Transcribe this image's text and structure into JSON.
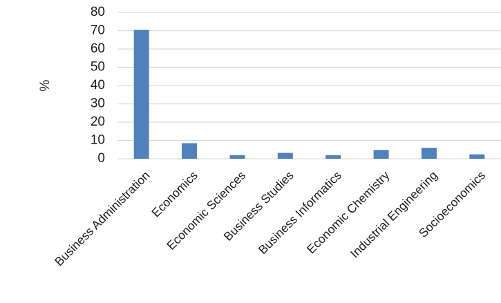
{
  "chart_data": {
    "type": "bar",
    "title": "",
    "xlabel": "",
    "ylabel": "%",
    "categories": [
      "Business Administration",
      "Economics",
      "Economic Sciences",
      "Business Studies",
      "Business Informatics",
      "Economic Chemistry",
      "Industrial Engineering",
      "Socioeconomics"
    ],
    "values": [
      70.5,
      8.5,
      2,
      3.2,
      2,
      4.8,
      6,
      2.4
    ],
    "ylim": [
      0,
      80
    ],
    "yticks": [
      "0",
      "10",
      "20",
      "30",
      "40",
      "50",
      "60",
      "70",
      "80"
    ],
    "grid": true,
    "legend": "none",
    "bar_color": "#4f81bd"
  }
}
